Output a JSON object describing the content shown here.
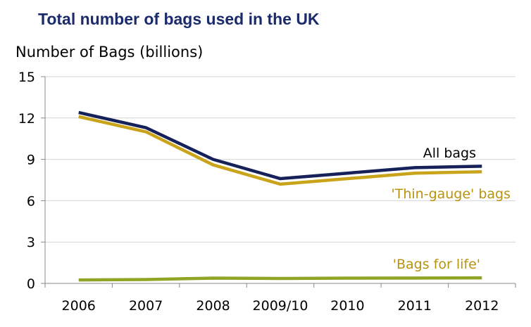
{
  "chart_data": {
    "type": "line",
    "title": "Total number of bags used in the UK",
    "ylabel": "Number of Bags (billions)",
    "xlabel": "",
    "categories": [
      "2006",
      "2007",
      "2008",
      "2009/10",
      "2010",
      "2011",
      "2012"
    ],
    "ylim": [
      0,
      15
    ],
    "yticks": [
      0,
      3,
      6,
      9,
      12,
      15
    ],
    "grid": true,
    "series": [
      {
        "name": "All bags",
        "values": [
          12.4,
          11.3,
          9.0,
          7.6,
          8.0,
          8.4,
          8.5
        ],
        "color": "#16215a"
      },
      {
        "name": "'Thin-gauge' bags",
        "values": [
          12.1,
          11.0,
          8.6,
          7.2,
          7.6,
          8.0,
          8.1
        ],
        "color": "#c9a41a"
      },
      {
        "name": "'Bags for life'",
        "values": [
          0.25,
          0.28,
          0.38,
          0.36,
          0.38,
          0.39,
          0.4
        ],
        "color": "#8fa526"
      }
    ]
  }
}
